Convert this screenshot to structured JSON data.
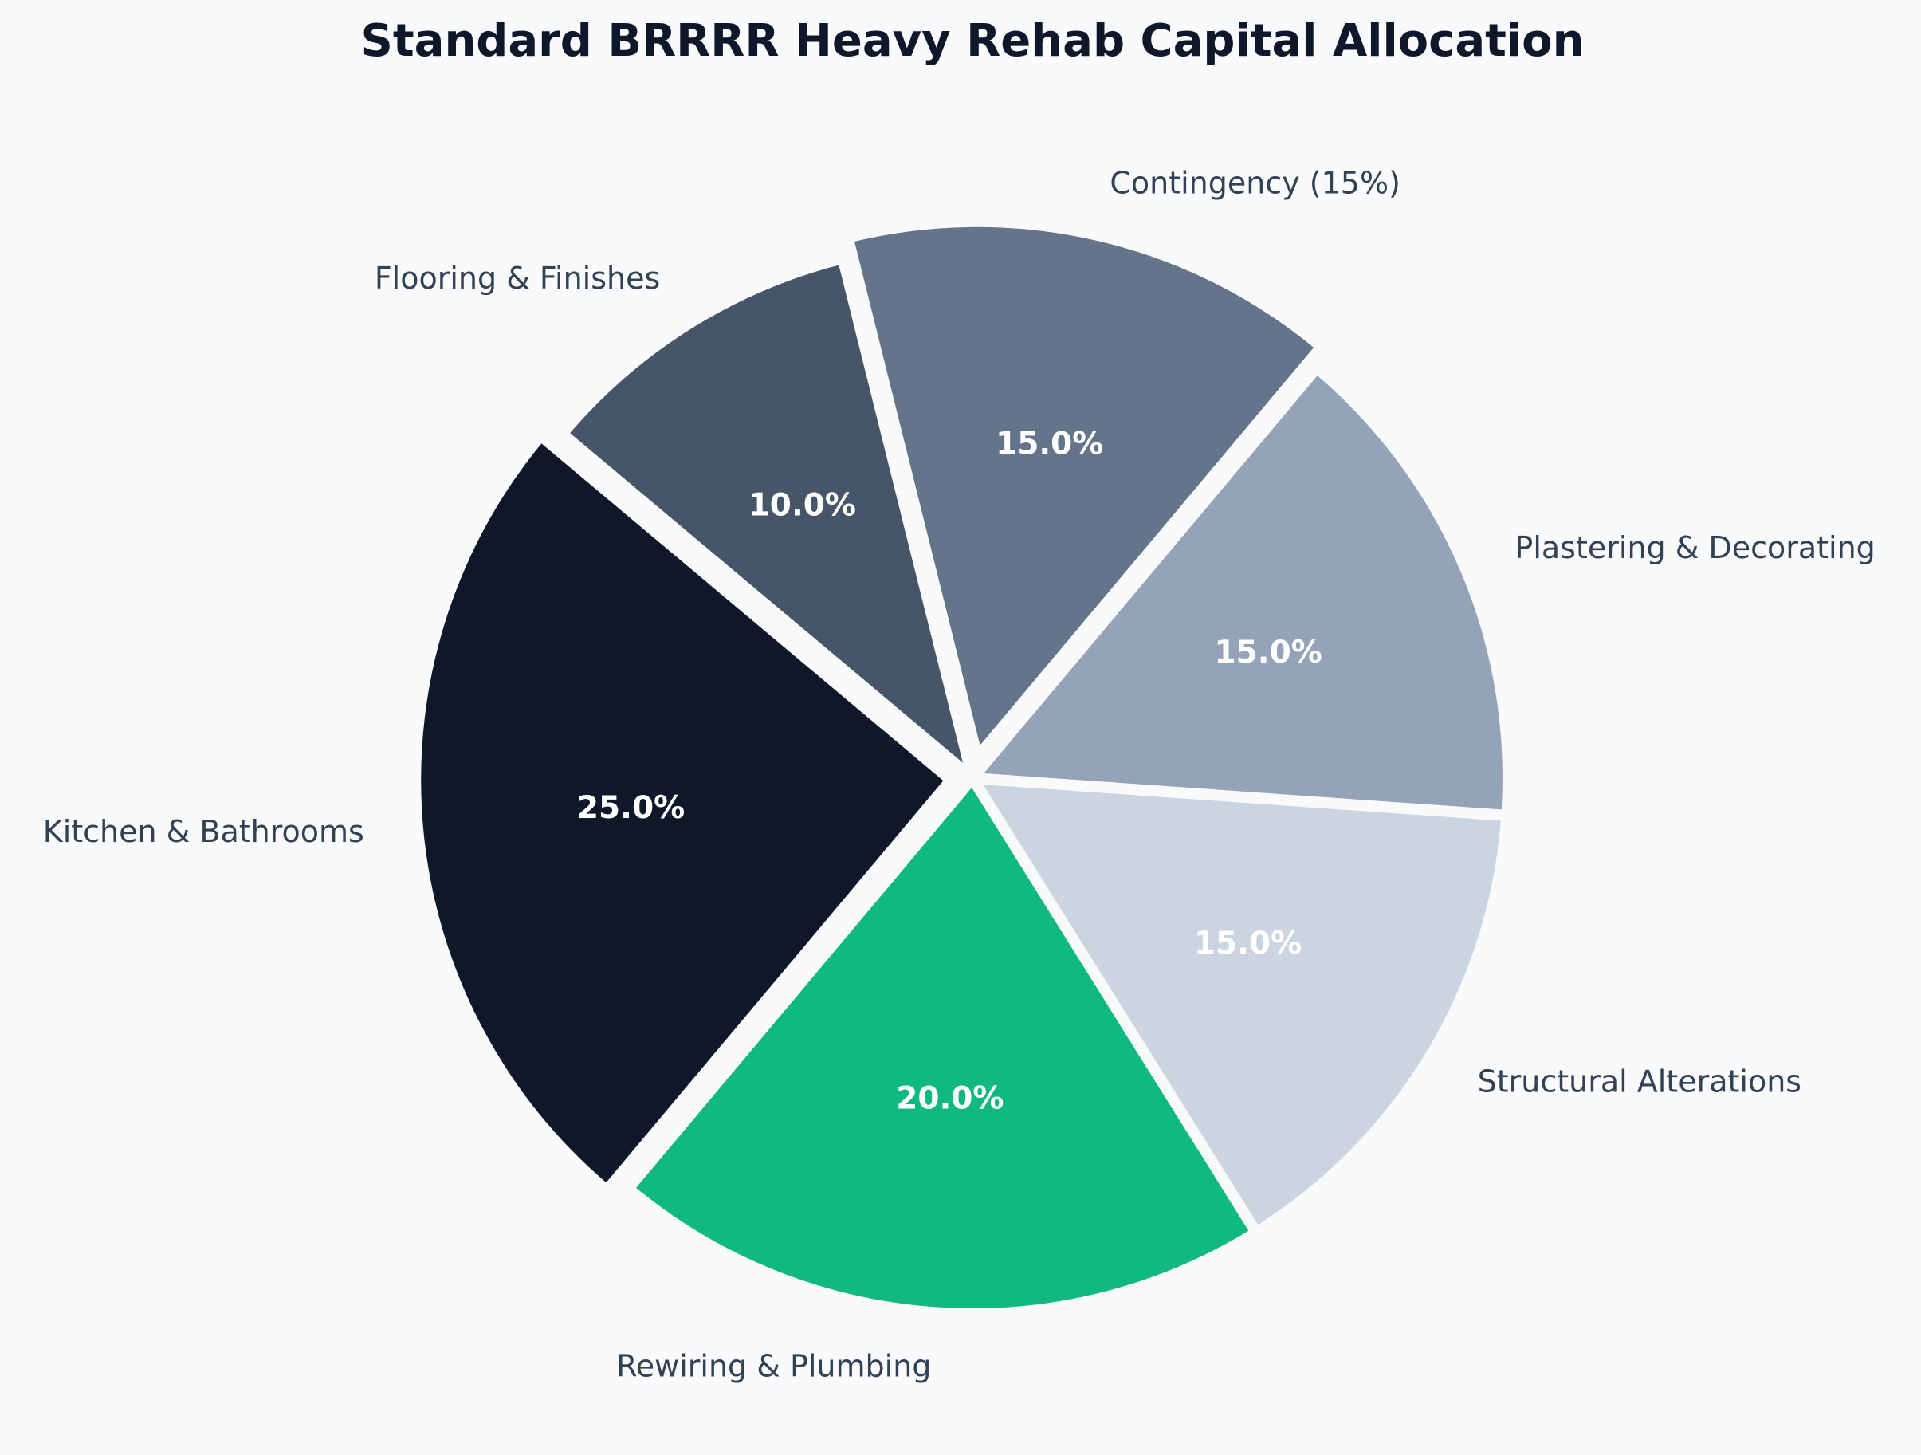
{
  "chart_data": {
    "type": "pie",
    "title": "Standard BRRRR Heavy Rehab Capital Allocation",
    "start_angle_deg": 140,
    "direction": "counterclockwise",
    "slices": [
      {
        "label": "Kitchen & Bathrooms",
        "value": 25.0,
        "value_label": "25.0%",
        "color": "#0f172a",
        "exploded": true
      },
      {
        "label": "Rewiring & Plumbing",
        "value": 20.0,
        "value_label": "20.0%",
        "color": "#10b981",
        "exploded": false
      },
      {
        "label": "Structural Alterations",
        "value": 15.0,
        "value_label": "15.0%",
        "color": "#cbd5e1",
        "exploded": false
      },
      {
        "label": "Plastering & Decorating",
        "value": 15.0,
        "value_label": "15.0%",
        "color": "#94a3b8",
        "exploded": false
      },
      {
        "label": "Contingency (15%)",
        "value": 15.0,
        "value_label": "15.0%",
        "color": "#64748b",
        "exploded": true
      },
      {
        "label": "Flooring & Finishes",
        "value": 10.0,
        "value_label": "10.0%",
        "color": "#475569",
        "exploded": false
      }
    ]
  }
}
